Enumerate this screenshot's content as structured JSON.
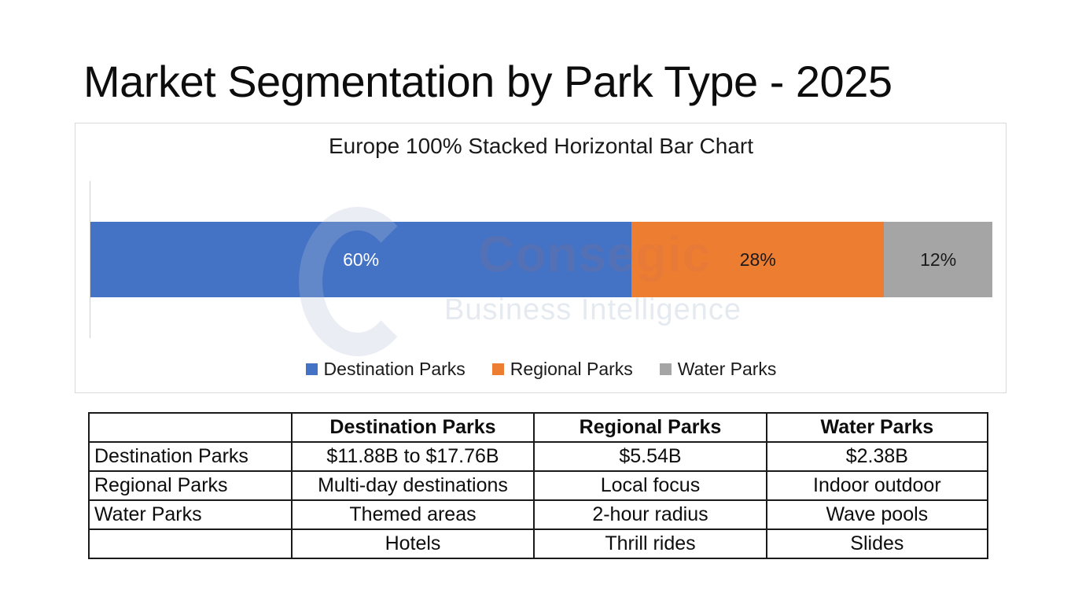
{
  "slide": {
    "title": "Market Segmentation by Park Type - 2025"
  },
  "watermark": {
    "brand": "Consegic",
    "tagline": "Business Intelligence"
  },
  "chart_data": {
    "type": "bar",
    "orientation": "horizontal",
    "stacked": "100%",
    "title": "Europe 100% Stacked Horizontal Bar Chart",
    "categories": [
      "Europe"
    ],
    "series": [
      {
        "name": "Destination Parks",
        "values": [
          60
        ],
        "label": "60%",
        "color": "#4472C4",
        "label_color": "#ffffff"
      },
      {
        "name": "Regional Parks",
        "values": [
          28
        ],
        "label": "28%",
        "color": "#ED7D31",
        "label_color": "#1a1a1a"
      },
      {
        "name": "Water Parks",
        "values": [
          12
        ],
        "label": "12%",
        "color": "#A5A5A5",
        "label_color": "#1a1a1a"
      }
    ],
    "xlabel": "",
    "ylabel": "",
    "xlim": [
      0,
      100
    ],
    "grid": false,
    "axis_labels_visible": false,
    "legend_position": "bottom",
    "legend": [
      "Destination Parks",
      "Regional Parks",
      "Water Parks"
    ]
  },
  "table": {
    "headers": [
      "",
      "Destination Parks",
      "Regional Parks",
      "Water Parks"
    ],
    "rows": [
      [
        "Destination Parks",
        "$11.88B to $17.76B",
        "$5.54B",
        "$2.38B"
      ],
      [
        "Regional Parks",
        "Multi-day destinations",
        "Local focus",
        "Indoor outdoor"
      ],
      [
        "Water Parks",
        "Themed areas",
        "2-hour radius",
        "Wave pools"
      ],
      [
        "",
        "Hotels",
        "Thrill rides",
        "Slides"
      ]
    ]
  }
}
